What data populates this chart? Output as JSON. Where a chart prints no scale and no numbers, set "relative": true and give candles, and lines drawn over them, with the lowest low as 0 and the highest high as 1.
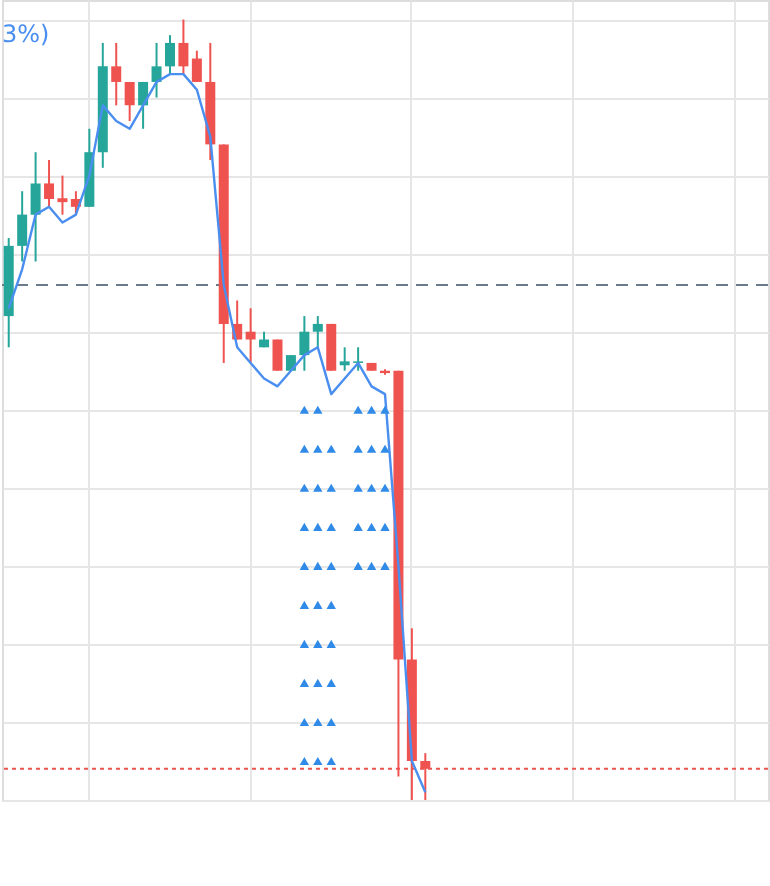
{
  "chart_data": {
    "type": "candlestick",
    "relative": true,
    "grid": true,
    "legend": false,
    "tick_labels": false,
    "categories": [
      null,
      null,
      null,
      null,
      null,
      null,
      null,
      null,
      null,
      null,
      null,
      null,
      null,
      null,
      null,
      null,
      null,
      null,
      null,
      null,
      null,
      null,
      null,
      null,
      null,
      null,
      null,
      null,
      null,
      null,
      null,
      null
    ],
    "ohlc": [
      [
        0.62,
        0.72,
        0.58,
        0.71
      ],
      [
        0.71,
        0.78,
        0.69,
        0.75
      ],
      [
        0.75,
        0.83,
        0.69,
        0.79
      ],
      [
        0.79,
        0.82,
        0.76,
        0.77
      ],
      [
        0.771,
        0.8,
        0.75,
        0.766
      ],
      [
        0.77,
        0.78,
        0.75,
        0.76
      ],
      [
        0.76,
        0.86,
        0.76,
        0.83
      ],
      [
        0.83,
        0.97,
        0.81,
        0.94
      ],
      [
        0.94,
        0.97,
        0.89,
        0.92
      ],
      [
        0.92,
        0.92,
        0.87,
        0.89
      ],
      [
        0.89,
        0.92,
        0.86,
        0.92
      ],
      [
        0.92,
        0.97,
        0.9,
        0.94
      ],
      [
        0.94,
        0.98,
        0.93,
        0.97
      ],
      [
        0.97,
        1.0,
        0.93,
        0.94
      ],
      [
        0.95,
        0.96,
        0.92,
        0.92
      ],
      [
        0.92,
        0.97,
        0.82,
        0.84
      ],
      [
        0.84,
        0.84,
        0.56,
        0.61
      ],
      [
        0.61,
        0.64,
        0.59,
        0.59
      ],
      [
        0.6,
        0.63,
        0.56,
        0.59
      ],
      [
        0.58,
        0.6,
        0.58,
        0.59
      ],
      [
        0.59,
        0.59,
        0.55,
        0.55
      ],
      [
        0.55,
        0.57,
        0.55,
        0.57
      ],
      [
        0.57,
        0.62,
        0.55,
        0.6
      ],
      [
        0.6,
        0.62,
        0.58,
        0.61
      ],
      [
        0.61,
        0.61,
        0.55,
        0.55
      ],
      [
        0.557,
        0.58,
        0.55,
        0.562
      ],
      [
        0.56,
        0.58,
        0.55,
        0.562
      ],
      [
        0.56,
        0.56,
        0.55,
        0.55
      ],
      [
        0.55,
        0.552,
        0.545,
        0.547
      ],
      [
        0.55,
        0.55,
        0.03,
        0.18
      ],
      [
        0.18,
        0.22,
        0.0,
        0.05
      ],
      [
        0.05,
        0.06,
        0.0,
        0.04
      ]
    ],
    "colors": [
      "#26a69a",
      "#26a69a",
      "#26a69a",
      "#ef5350",
      "#ef5350",
      "#ef5350",
      "#26a69a",
      "#26a69a",
      "#ef5350",
      "#ef5350",
      "#26a69a",
      "#26a69a",
      "#26a69a",
      "#ef5350",
      "#ef5350",
      "#ef5350",
      "#ef5350",
      "#ef5350",
      "#ef5350",
      "#26a69a",
      "#ef5350",
      "#26a69a",
      "#26a69a",
      "#26a69a",
      "#ef5350",
      "#26a69a",
      "#26a69a",
      "#ef5350",
      "#ef5350",
      "#ef5350",
      "#ef5350",
      "#ef5350"
    ],
    "series": [
      {
        "type": "line",
        "color": "#4a8ef0",
        "marker": "none",
        "line_style": "solid",
        "values": [
          0.63,
          0.68,
          0.75,
          0.76,
          0.74,
          0.75,
          0.8,
          0.89,
          0.87,
          0.86,
          0.89,
          0.92,
          0.93,
          0.93,
          0.91,
          0.85,
          0.66,
          0.58,
          0.56,
          0.54,
          0.53,
          0.55,
          0.57,
          0.58,
          0.52,
          0.54,
          0.56,
          0.53,
          0.52,
          0.3,
          0.05,
          0.01
        ]
      },
      {
        "type": "scatter",
        "color": "#2f8ae8",
        "marker": "triangle",
        "values": [
          null,
          null,
          null,
          null,
          null,
          null,
          null,
          null,
          null,
          null,
          null,
          null,
          null,
          null,
          null,
          null,
          null,
          null,
          null,
          null,
          null,
          null,
          0.5,
          0.5,
          null,
          null,
          0.5,
          0.5,
          0.5,
          null,
          null,
          null
        ]
      },
      {
        "type": "scatter",
        "color": "#2f8ae8",
        "marker": "triangle",
        "values": [
          null,
          null,
          null,
          null,
          null,
          null,
          null,
          null,
          null,
          null,
          null,
          null,
          null,
          null,
          null,
          null,
          null,
          null,
          null,
          null,
          null,
          null,
          0.45,
          0.45,
          0.45,
          null,
          0.45,
          0.45,
          0.45,
          null,
          null,
          null
        ]
      },
      {
        "type": "scatter",
        "color": "#2f8ae8",
        "marker": "triangle",
        "values": [
          null,
          null,
          null,
          null,
          null,
          null,
          null,
          null,
          null,
          null,
          null,
          null,
          null,
          null,
          null,
          null,
          null,
          null,
          null,
          null,
          null,
          null,
          0.4,
          0.4,
          0.4,
          null,
          0.4,
          0.4,
          0.4,
          null,
          null,
          null
        ]
      },
      {
        "type": "scatter",
        "color": "#2f8ae8",
        "marker": "triangle",
        "values": [
          null,
          null,
          null,
          null,
          null,
          null,
          null,
          null,
          null,
          null,
          null,
          null,
          null,
          null,
          null,
          null,
          null,
          null,
          null,
          null,
          null,
          null,
          0.35,
          0.35,
          0.35,
          null,
          0.35,
          0.35,
          0.35,
          null,
          null,
          null
        ]
      },
      {
        "type": "scatter",
        "color": "#2f8ae8",
        "marker": "triangle",
        "values": [
          null,
          null,
          null,
          null,
          null,
          null,
          null,
          null,
          null,
          null,
          null,
          null,
          null,
          null,
          null,
          null,
          null,
          null,
          null,
          null,
          null,
          null,
          0.3,
          0.3,
          0.3,
          null,
          0.3,
          0.3,
          0.3,
          null,
          null,
          null
        ]
      },
      {
        "type": "scatter",
        "color": "#2f8ae8",
        "marker": "triangle",
        "values": [
          null,
          null,
          null,
          null,
          null,
          null,
          null,
          null,
          null,
          null,
          null,
          null,
          null,
          null,
          null,
          null,
          null,
          null,
          null,
          null,
          null,
          null,
          0.25,
          0.25,
          0.25,
          null,
          null,
          null,
          null,
          null,
          null,
          null
        ]
      },
      {
        "type": "scatter",
        "color": "#2f8ae8",
        "marker": "triangle",
        "values": [
          null,
          null,
          null,
          null,
          null,
          null,
          null,
          null,
          null,
          null,
          null,
          null,
          null,
          null,
          null,
          null,
          null,
          null,
          null,
          null,
          null,
          null,
          0.2,
          0.2,
          0.2,
          null,
          null,
          null,
          null,
          null,
          null,
          null
        ]
      },
      {
        "type": "scatter",
        "color": "#2f8ae8",
        "marker": "triangle",
        "values": [
          null,
          null,
          null,
          null,
          null,
          null,
          null,
          null,
          null,
          null,
          null,
          null,
          null,
          null,
          null,
          null,
          null,
          null,
          null,
          null,
          null,
          null,
          0.15,
          0.15,
          0.15,
          null,
          null,
          null,
          null,
          null,
          null,
          null
        ]
      },
      {
        "type": "scatter",
        "color": "#2f8ae8",
        "marker": "triangle",
        "values": [
          null,
          null,
          null,
          null,
          null,
          null,
          null,
          null,
          null,
          null,
          null,
          null,
          null,
          null,
          null,
          null,
          null,
          null,
          null,
          null,
          null,
          null,
          0.1,
          0.1,
          0.1,
          null,
          null,
          null,
          null,
          null,
          null,
          null
        ]
      },
      {
        "type": "scatter",
        "color": "#2f8ae8",
        "marker": "triangle",
        "values": [
          null,
          null,
          null,
          null,
          null,
          null,
          null,
          null,
          null,
          null,
          null,
          null,
          null,
          null,
          null,
          null,
          null,
          null,
          null,
          null,
          null,
          null,
          0.05,
          0.05,
          0.05,
          null,
          null,
          null,
          null,
          null,
          null,
          null
        ]
      }
    ],
    "ref_lines": [
      {
        "axis": "y",
        "value": 0.66,
        "color": "#6b7a8c",
        "line_style": "dashed"
      },
      {
        "axis": "y",
        "value": 0.04,
        "color": "#ef5350",
        "line_style": "dotted"
      }
    ],
    "annotations": [
      "3%)"
    ]
  }
}
